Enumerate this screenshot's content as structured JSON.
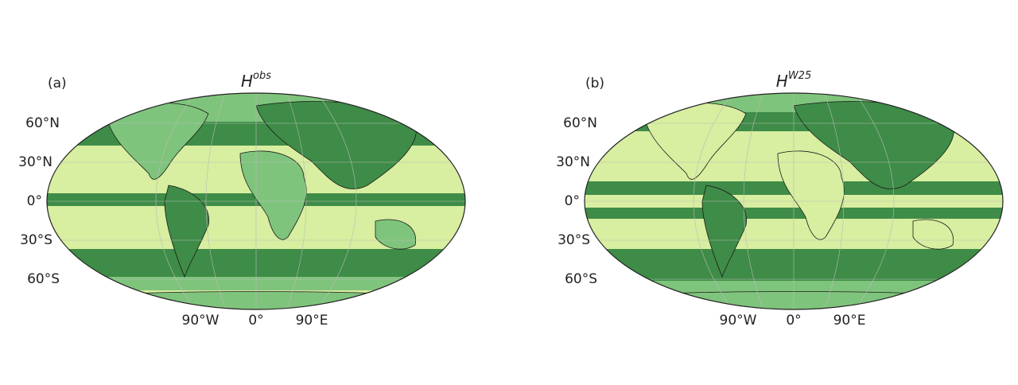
{
  "panels": [
    {
      "label": "(a)",
      "title": {
        "base": "H",
        "sup": "obs"
      }
    },
    {
      "label": "(b)",
      "title": {
        "base": "H",
        "sup": "W25"
      }
    }
  ],
  "lat_labels": [
    "60°N",
    "30°N",
    "0°",
    "30°S",
    "60°S"
  ],
  "lon_labels": [
    "90°W",
    "0°",
    "90°E"
  ]
}
